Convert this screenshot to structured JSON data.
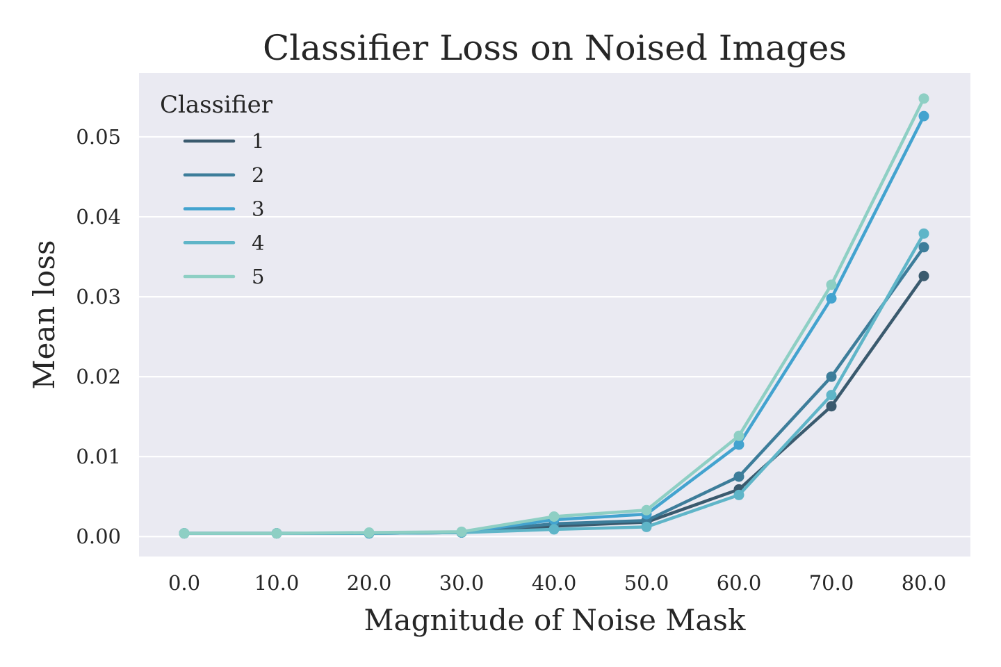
{
  "chart_data": {
    "type": "line",
    "title": "Classifier Loss on Noised Images",
    "xlabel": "Magnitude of Noise Mask",
    "ylabel": "Mean loss",
    "categories": [
      "0.0",
      "10.0",
      "20.0",
      "30.0",
      "40.0",
      "50.0",
      "60.0",
      "70.0",
      "80.0"
    ],
    "yticks": [
      "0.00",
      "0.01",
      "0.02",
      "0.03",
      "0.04",
      "0.05"
    ],
    "ylim": [
      -0.0025,
      0.058
    ],
    "grid": true,
    "legend": {
      "title": "Classifier",
      "placement": "top-left"
    },
    "series": [
      {
        "name": "1",
        "color": "#3a5a6e",
        "values": [
          0.0004,
          0.0004,
          0.0004,
          0.0005,
          0.0013,
          0.0018,
          0.0059,
          0.0163,
          0.0326
        ]
      },
      {
        "name": "2",
        "color": "#3d7d9a",
        "values": [
          0.0004,
          0.0004,
          0.0004,
          0.0005,
          0.0016,
          0.002,
          0.0075,
          0.02,
          0.0362
        ]
      },
      {
        "name": "3",
        "color": "#43a3cf",
        "values": [
          0.0004,
          0.0004,
          0.0004,
          0.0005,
          0.0021,
          0.0028,
          0.0115,
          0.0298,
          0.0526
        ]
      },
      {
        "name": "4",
        "color": "#5fb5c8",
        "values": [
          0.0004,
          0.0004,
          0.0004,
          0.0005,
          0.0009,
          0.0012,
          0.0052,
          0.0177,
          0.0379
        ]
      },
      {
        "name": "5",
        "color": "#8ecfc4",
        "values": [
          0.0004,
          0.0004,
          0.0005,
          0.0006,
          0.0025,
          0.0033,
          0.0126,
          0.0315,
          0.0548
        ]
      }
    ]
  }
}
